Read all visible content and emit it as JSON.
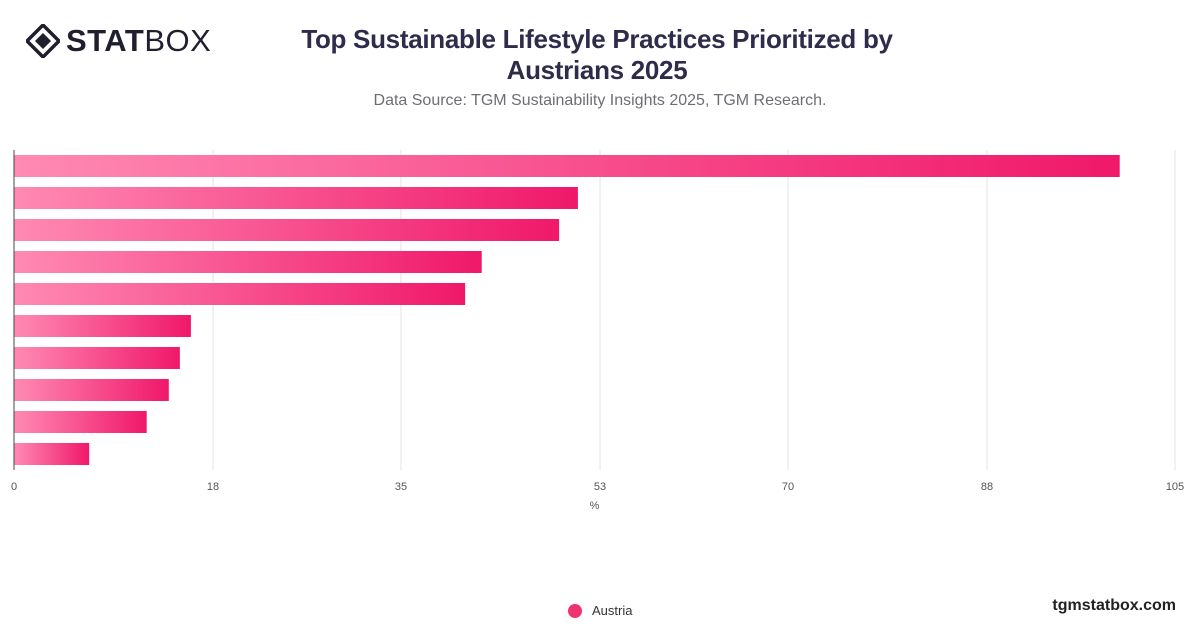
{
  "brand": {
    "logo_bold": "STAT",
    "logo_light": "BOX",
    "logo_icon": "diamond-logo-icon",
    "website": "tgmstatbox.com"
  },
  "header": {
    "title": "Top Sustainable Lifestyle Practices Prioritized by Austrians 2025",
    "subtitle": "Data Source: TGM Sustainability Insights 2025, TGM Research."
  },
  "legend": {
    "label": "Austria",
    "color": "#f0336f"
  },
  "chart_data": {
    "type": "bar",
    "orientation": "horizontal",
    "categories": [
      "",
      "",
      "",
      "",
      "",
      "",
      "",
      "",
      "",
      ""
    ],
    "series": [
      {
        "name": "Austria",
        "values": [
          100,
          51,
          49.3,
          42.3,
          40.8,
          16,
          15,
          14,
          12,
          6.8
        ]
      }
    ],
    "xlabel": "%",
    "ylabel": "",
    "xlim": [
      0,
      105
    ],
    "xticks": [
      0,
      18,
      35,
      53,
      70,
      88,
      105
    ],
    "grid": true,
    "gradient_start": "#ff8ab3",
    "gradient_end": "#f0186a",
    "legend_position": "bottom"
  }
}
